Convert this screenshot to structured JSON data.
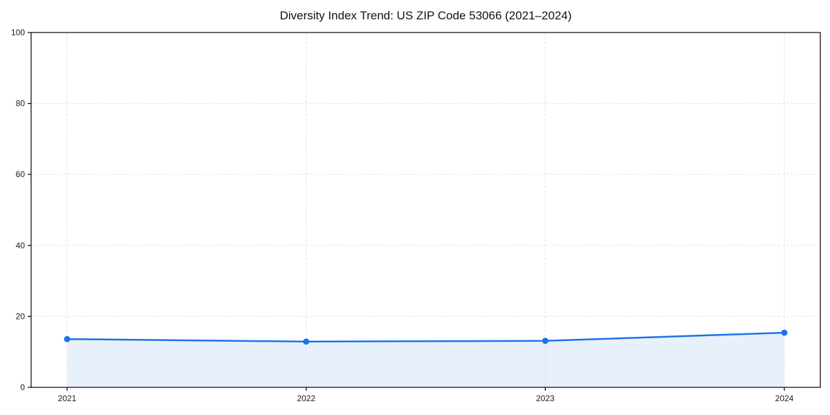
{
  "page": {
    "title": "Diversity Index Trend: US ZIP Code 53066 (2021–2024)"
  },
  "chart_data": {
    "type": "area",
    "title": "Diversity Index Trend: US ZIP Code 53066 (2021–2024)",
    "xlabel": "",
    "ylabel": "",
    "categories": [
      "2021",
      "2022",
      "2023",
      "2024"
    ],
    "series": [
      {
        "name": "Diversity Index",
        "values": [
          13.6,
          12.9,
          13.1,
          15.4
        ]
      }
    ],
    "ylim": [
      0,
      100
    ],
    "yticks": [
      0,
      20,
      40,
      60,
      80,
      100
    ],
    "grid": true,
    "grid_style": "dashed",
    "legend_position": "none",
    "marker_shape": "circle",
    "colors": {
      "line": "#1a73e8",
      "marker": "#1a73e8",
      "fill": "#e8f0fc",
      "grid": "#e3e3e3",
      "axis": "#000000",
      "tick_label": "#1a1a1a",
      "background": "#ffffff"
    }
  }
}
